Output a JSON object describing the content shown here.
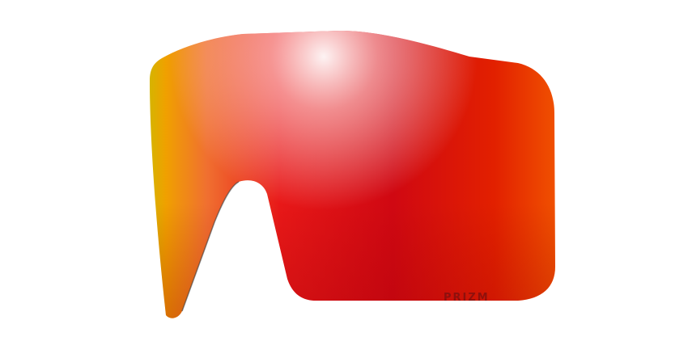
{
  "product": {
    "brand_logo": "PRIZM",
    "colors": {
      "edge_yellow": "#d6b400",
      "orange": "#f07030",
      "red": "#d80a14",
      "deep_red": "#c00010",
      "right_orange": "#f04a00",
      "highlight": "#ffffff"
    }
  }
}
